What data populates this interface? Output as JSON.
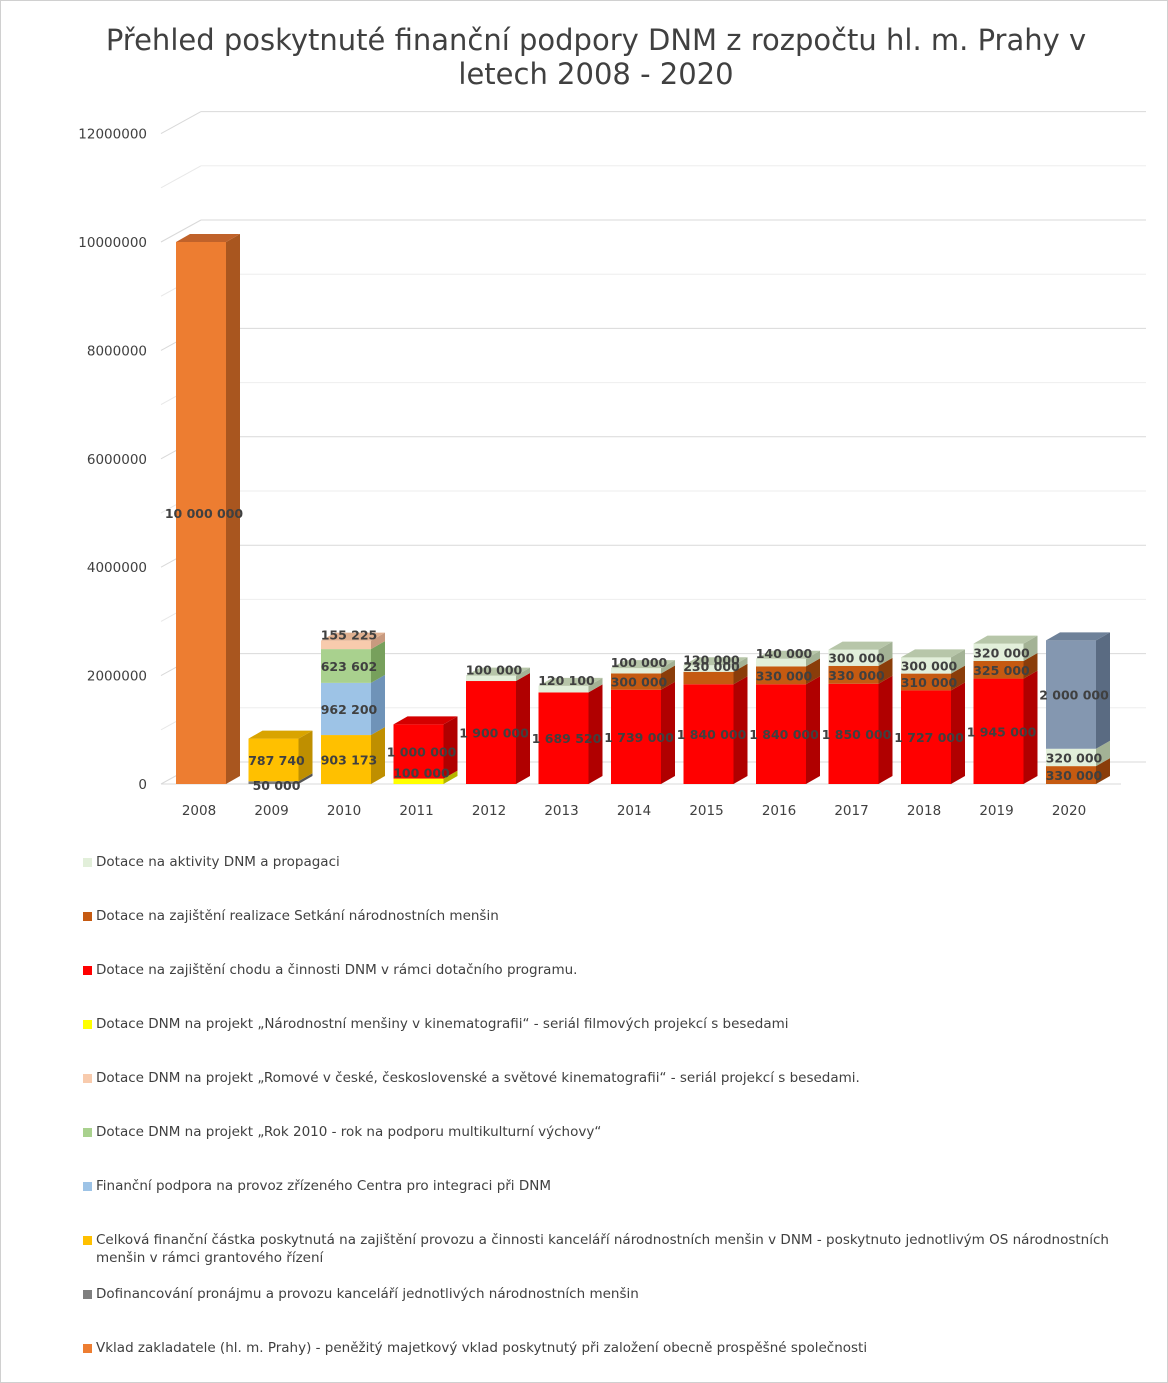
{
  "chart_data": {
    "type": "bar",
    "stacked": true,
    "three_d": true,
    "title": "Přehled poskytnuté finanční podpory DNM z rozpočtu hl. m. Prahy v letech 2008 - 2020",
    "xlabel": "",
    "ylabel": "",
    "ylim": [
      0,
      12000000
    ],
    "yticks": [
      0,
      2000000,
      4000000,
      6000000,
      8000000,
      10000000,
      12000000
    ],
    "ytick_labels": [
      "0",
      "2000000",
      "4000000",
      "6000000",
      "8000000",
      "10000000",
      "12000000"
    ],
    "grid": true,
    "legend_position": "bottom",
    "categories": [
      "2008",
      "2009",
      "2010",
      "2011",
      "2012",
      "2013",
      "2014",
      "2015",
      "2016",
      "2017",
      "2018",
      "2019",
      "2020"
    ],
    "series": [
      {
        "name": "Vklad zakladatele (hl. m. Prahy)  - peněžitý majetkový vklad poskytnutý při založení obecně prospěšné společnosti",
        "color": "#ed7d31",
        "side": "#a9561f",
        "top": "#c0622a",
        "values": [
          10000000,
          null,
          null,
          null,
          null,
          null,
          null,
          null,
          null,
          null,
          null,
          null,
          null
        ],
        "labels": [
          "10 000 000",
          "",
          "",
          "",
          "",
          "",
          "",
          "",
          "",
          "",
          "",
          "",
          ""
        ]
      },
      {
        "name": "Dofinancování pronájmu a provozu kanceláří jednotlivých národnostních menšin",
        "color": "#7f7f7f",
        "side": "#555555",
        "top": "#6a6a6a",
        "values": [
          null,
          50000,
          null,
          null,
          null,
          null,
          null,
          null,
          null,
          null,
          null,
          null,
          null
        ],
        "labels": [
          "",
          "50 000",
          "",
          "",
          "",
          "",
          "",
          "",
          "",
          "",
          "",
          "",
          ""
        ]
      },
      {
        "name": "Celková finanční částka poskytnutá na zajištění provozu a činnosti kanceláří národnostních menšin v DNM -  poskytnuto jednotlivým OS národnostních menšin v rámci grantového řízení",
        "color": "#ffc000",
        "side": "#bf8f00",
        "top": "#d9a400",
        "values": [
          null,
          787740,
          903173,
          null,
          null,
          null,
          null,
          null,
          null,
          null,
          null,
          null,
          null
        ],
        "labels": [
          "",
          "787 740",
          "903 173",
          "",
          "",
          "",
          "",
          "",
          "",
          "",
          "",
          "",
          ""
        ]
      },
      {
        "name": "Finanční podpora na provoz zřízeného Centra pro integraci při DNM",
        "color": "#9dc3e6",
        "side": "#6f93b8",
        "top": "#84a9cc",
        "values": [
          null,
          null,
          962200,
          null,
          null,
          null,
          null,
          null,
          null,
          null,
          null,
          null,
          null
        ],
        "labels": [
          "",
          "",
          "962 200",
          "",
          "",
          "",
          "",
          "",
          "",
          "",
          "",
          "",
          ""
        ]
      },
      {
        "name": "Dotace DNM na projekt „Rok 2010 - rok na podporu multikulturní výchovy“",
        "color": "#a9d18e",
        "side": "#77a05c",
        "top": "#8fba73",
        "values": [
          null,
          null,
          623602,
          null,
          null,
          null,
          null,
          null,
          null,
          null,
          null,
          null,
          null
        ],
        "labels": [
          "",
          "",
          "623 602",
          "",
          "",
          "",
          "",
          "",
          "",
          "",
          "",
          "",
          ""
        ]
      },
      {
        "name": "Dotace DNM na projekt „Romové v české, československé a světové kinematografii“ - seriál projekcí s besedami.",
        "color": "#f8cbad",
        "side": "#c89a7f",
        "top": "#e0b090",
        "values": [
          null,
          null,
          155225,
          null,
          null,
          null,
          null,
          null,
          null,
          null,
          null,
          null,
          null
        ],
        "labels": [
          "",
          "",
          "155 225",
          "",
          "",
          "",
          "",
          "",
          "",
          "",
          "",
          "",
          ""
        ]
      },
      {
        "name": "Dotace DNM na projekt „Národnostní menšiny v kinematografii“ - seriál filmových projekcí s besedami",
        "color": "#ffff00",
        "side": "#b5b500",
        "top": "#d8d800",
        "values": [
          null,
          null,
          null,
          100000,
          null,
          null,
          null,
          null,
          null,
          null,
          null,
          null,
          null
        ],
        "labels": [
          "",
          "",
          "",
          "100 000",
          "",
          "",
          "",
          "",
          "",
          "",
          "",
          "",
          ""
        ]
      },
      {
        "name": "Dotace na zajištění chodu a činnosti DNM v rámci dotačního programu.",
        "color": "#ff0000",
        "side": "#b00000",
        "top": "#d40000",
        "values": [
          null,
          null,
          null,
          1000000,
          1900000,
          1689520,
          1739000,
          1840000,
          1840000,
          1850000,
          1727000,
          1945000,
          null
        ],
        "labels": [
          "",
          "",
          "",
          "1 000 000",
          "1 900 000",
          "1 689 520",
          "1 739 000",
          "1 840 000",
          "1 840 000",
          "1 850 000",
          "1 727 000",
          "1 945 000",
          ""
        ]
      },
      {
        "name": "Dotace na zajištění realizace Setkání národnostních menšin",
        "color": "#c55a11",
        "side": "#8a3d0a",
        "top": "#a84c0e",
        "values": [
          null,
          null,
          null,
          null,
          null,
          null,
          300000,
          230000,
          330000,
          330000,
          310000,
          325000,
          330000
        ],
        "labels": [
          "",
          "",
          "",
          "",
          "",
          "",
          "300 000",
          "230 000",
          "330 000",
          "330 000",
          "310 000",
          "325 000",
          "330 000"
        ]
      },
      {
        "name": "Dotace na aktivity DNM a propagaci",
        "color": "#e2efda",
        "side": "#a3b295",
        "top": "#b7c6a9",
        "values": [
          null,
          null,
          null,
          null,
          100000,
          120100,
          100000,
          120000,
          140000,
          300000,
          300000,
          320000,
          320000
        ],
        "labels": [
          "",
          "",
          "",
          "",
          "100 000",
          "120 100",
          "100 000",
          "120 000",
          "140 000",
          "300 000",
          "300 000",
          "320 000",
          "320 000"
        ]
      },
      {
        "name": "",
        "color": "#8497b0",
        "side": "#5a6b82",
        "top": "#6e8199",
        "values": [
          null,
          null,
          null,
          null,
          null,
          null,
          null,
          null,
          null,
          null,
          null,
          null,
          2000000
        ],
        "labels": [
          "",
          "",
          "",
          "",
          "",
          "",
          "",
          "",
          "",
          "",
          "",
          "",
          "2 000 000"
        ]
      }
    ]
  },
  "legend": [
    {
      "label": "Dotace na aktivity DNM a propagaci",
      "color": "#e2efda"
    },
    {
      "label": "Dotace na zajištění realizace Setkání národnostních menšin",
      "color": "#c55a11"
    },
    {
      "label": "Dotace na zajištění chodu a činnosti DNM v rámci dotačního programu.",
      "color": "#ff0000"
    },
    {
      "label": "Dotace DNM na projekt „Národnostní menšiny v kinematografii“ - seriál filmových projekcí s besedami",
      "color": "#ffff00"
    },
    {
      "label": "Dotace DNM na projekt „Romové v české, československé a světové kinematografii“ - seriál projekcí s besedami.",
      "color": "#f8cbad"
    },
    {
      "label": "Dotace DNM na projekt „Rok 2010 - rok na podporu multikulturní výchovy“",
      "color": "#a9d18e"
    },
    {
      "label": "Finanční podpora na provoz zřízeného Centra pro integraci při DNM",
      "color": "#9dc3e6"
    },
    {
      "label": "Celková finanční částka poskytnutá na zajištění provozu a činnosti kanceláří národnostních menšin v DNM -  poskytnuto jednotlivým OS národnostních menšin v rámci grantového řízení",
      "color": "#ffc000"
    },
    {
      "label": "Dofinancování pronájmu a provozu kanceláří jednotlivých národnostních menšin",
      "color": "#7f7f7f"
    },
    {
      "label": "Vklad zakladatele (hl. m. Prahy)  - peněžitý majetkový vklad poskytnutý při založení obecně prospěšné společnosti",
      "color": "#ed7d31"
    }
  ]
}
